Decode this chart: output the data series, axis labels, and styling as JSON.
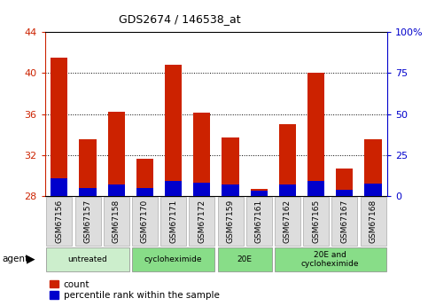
{
  "title": "GDS2674 / 146538_at",
  "samples": [
    "GSM67156",
    "GSM67157",
    "GSM67158",
    "GSM67170",
    "GSM67171",
    "GSM67172",
    "GSM67159",
    "GSM67161",
    "GSM67162",
    "GSM67165",
    "GSM67167",
    "GSM67168"
  ],
  "count_values": [
    41.5,
    33.5,
    36.2,
    31.6,
    40.8,
    36.1,
    33.7,
    28.7,
    35.0,
    40.0,
    30.7,
    33.5
  ],
  "percentile_values": [
    10.5,
    5.0,
    7.0,
    5.0,
    9.0,
    8.0,
    7.0,
    3.0,
    7.0,
    9.0,
    3.5,
    7.5
  ],
  "ymin": 28,
  "ymax": 44,
  "yticks": [
    28,
    32,
    36,
    40,
    44
  ],
  "y2min": 0,
  "y2max": 100,
  "y2ticks": [
    0,
    25,
    50,
    75,
    100
  ],
  "bar_width": 0.6,
  "red_color": "#cc2200",
  "blue_color": "#0000cc",
  "groups_info": [
    {
      "start": 0,
      "end": 2,
      "label": "untreated",
      "color": "#cceecc"
    },
    {
      "start": 3,
      "end": 5,
      "label": "cycloheximide",
      "color": "#88dd88"
    },
    {
      "start": 6,
      "end": 7,
      "label": "20E",
      "color": "#88dd88"
    },
    {
      "start": 8,
      "end": 11,
      "label": "20E and\ncycloheximide",
      "color": "#88dd88"
    }
  ],
  "sample_box_color": "#dddddd",
  "sample_box_edge": "#aaaaaa",
  "legend_count": "count",
  "legend_percentile": "percentile rank within the sample"
}
